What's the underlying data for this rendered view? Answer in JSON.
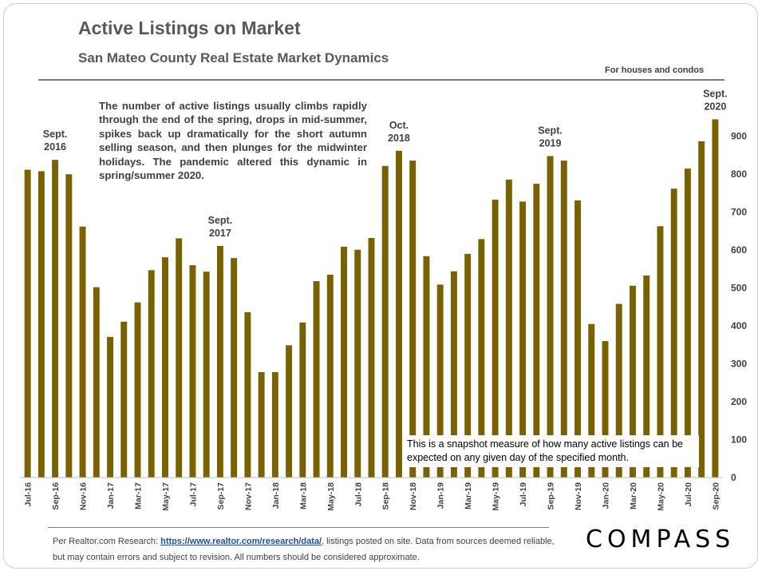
{
  "title": "Active Listings on Market",
  "subtitle": "San Mateo County Real Estate Market Dynamics",
  "note": "For houses and condos",
  "annotation": "The number of active listings usually climbs rapidly through the end of the spring, drops in mid-summer, spikes back up dramatically for the short autumn selling season, and then plunges for the midwinter holidays. The pandemic altered this dynamic in spring/summer 2020.",
  "snapshot_note": "This is a snapshot measure of how many active listings can be expected on any given day of the specified month.",
  "source": {
    "prefix": "Per Realtor.com Research:  ",
    "link": "https://www.realtor.com/research/data/",
    "suffix": ", listings posted on site. Data from sources deemed reliable, but may contain errors and subject to revision.  All numbers should be considered approximate."
  },
  "logo": "COMPASS",
  "colors": {
    "bar": "#7a6100",
    "text": "#404040"
  },
  "chart_data": {
    "type": "bar",
    "categories": [
      "Jul-16",
      "Aug-16",
      "Sep-16",
      "Oct-16",
      "Nov-16",
      "Dec-16",
      "Jan-17",
      "Feb-17",
      "Mar-17",
      "Apr-17",
      "May-17",
      "Jun-17",
      "Jul-17",
      "Aug-17",
      "Sep-17",
      "Oct-17",
      "Nov-17",
      "Dec-17",
      "Jan-18",
      "Feb-18",
      "Mar-18",
      "Apr-18",
      "May-18",
      "Jun-18",
      "Jul-18",
      "Aug-18",
      "Sep-18",
      "Oct-18",
      "Nov-18",
      "Dec-18",
      "Jan-19",
      "Feb-19",
      "Mar-19",
      "Apr-19",
      "May-19",
      "Jun-19",
      "Jul-19",
      "Aug-19",
      "Sep-19",
      "Oct-19",
      "Nov-19",
      "Dec-19",
      "Jan-20",
      "Feb-20",
      "Mar-20",
      "Apr-20",
      "May-20",
      "Jun-20",
      "Jul-20",
      "Aug-20",
      "Sep-20"
    ],
    "tick_labels": [
      "Jul-16",
      "",
      "Sep-16",
      "",
      "Nov-16",
      "",
      "Jan-17",
      "",
      "Mar-17",
      "",
      "May-17",
      "",
      "Jul-17",
      "",
      "Sep-17",
      "",
      "Nov-17",
      "",
      "Jan-18",
      "",
      "Mar-18",
      "",
      "May-18",
      "",
      "Jul-18",
      "",
      "Sep-18",
      "",
      "Nov-18",
      "",
      "Jan-19",
      "",
      "Mar-19",
      "",
      "May-19",
      "",
      "Jul-19",
      "",
      "Sep-19",
      "",
      "Nov-19",
      "",
      "Jan-20",
      "",
      "Mar-20",
      "",
      "May-20",
      "",
      "Jul-20",
      "",
      "Sep-20"
    ],
    "values": [
      812,
      808,
      838,
      800,
      662,
      502,
      371,
      411,
      462,
      547,
      581,
      631,
      560,
      543,
      611,
      579,
      436,
      278,
      278,
      349,
      409,
      518,
      535,
      609,
      601,
      632,
      822,
      862,
      836,
      584,
      509,
      544,
      590,
      629,
      733,
      786,
      728,
      775,
      848,
      836,
      731,
      405,
      360,
      458,
      506,
      533,
      663,
      762,
      815,
      887,
      945
    ],
    "ylim": [
      0,
      950
    ],
    "yticks": [
      0,
      100,
      200,
      300,
      400,
      500,
      600,
      700,
      800,
      900
    ],
    "y_axis_side": "right",
    "peak_labels": [
      {
        "index": 2,
        "lines": [
          "Sept.",
          "2016"
        ]
      },
      {
        "index": 14,
        "lines": [
          "Sept.",
          "2017"
        ]
      },
      {
        "index": 27,
        "lines": [
          "Oct.",
          "2018"
        ]
      },
      {
        "index": 38,
        "lines": [
          "Sept.",
          "2019"
        ]
      },
      {
        "index": 50,
        "lines": [
          "Sept.",
          "2020"
        ]
      }
    ],
    "title": "Active Listings on Market",
    "xlabel": "",
    "ylabel": ""
  }
}
